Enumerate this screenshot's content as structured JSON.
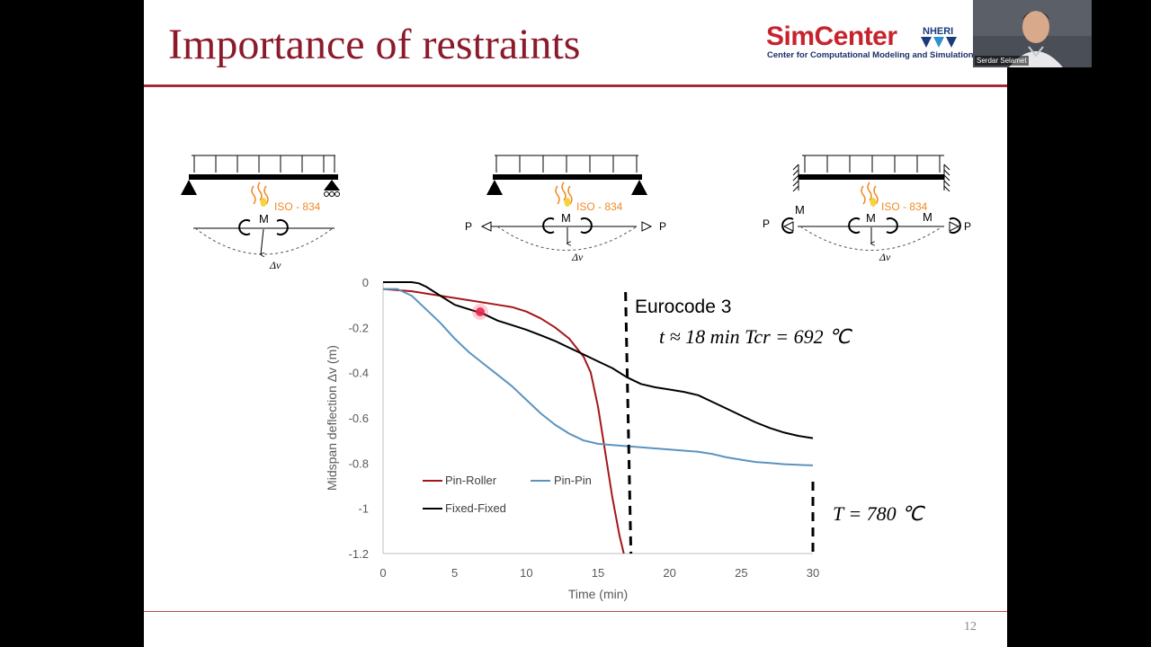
{
  "slide": {
    "title": "Importance of restraints",
    "number": "12",
    "logo": {
      "main": "SimCenter",
      "badge": "NHERI",
      "subtitle": "Center for Computational Modeling and Simulation"
    },
    "webcam": {
      "name": "Serdar Selamet"
    }
  },
  "diagrams": [
    {
      "support": "pin-roller",
      "fire_label": "ISO - 834",
      "moment_label": "M",
      "deflection_label": "Δv"
    },
    {
      "support": "pin-pin",
      "fire_label": "ISO - 834",
      "moment_label": "M",
      "axial_label": "P",
      "deflection_label": "Δv"
    },
    {
      "support": "fixed-fixed",
      "fire_label": "ISO - 834",
      "moment_label": "M",
      "axial_label": "P",
      "deflection_label": "Δv"
    }
  ],
  "annotations": {
    "eurocode": "Eurocode 3",
    "eurocode_eq": "t ≈ 18 min   Tcr = 692 ℃",
    "temp_eq": "T = 780 ℃"
  },
  "colors": {
    "accent": "#8b1a2b",
    "pin_roller": "#a4161a",
    "pin_pin": "#5b93bf",
    "fixed_fixed": "#000000",
    "fire": "#f08a24"
  },
  "chart_data": {
    "type": "line",
    "xlabel": "Time (min)",
    "ylabel": "Midspan deflection   Δv  (m)",
    "xlim": [
      0,
      30
    ],
    "ylim": [
      -1.2,
      0
    ],
    "xticks": [
      "0",
      "5",
      "10",
      "15",
      "20",
      "25",
      "30"
    ],
    "yticks": [
      "0",
      "-0.2",
      "-0.4",
      "-0.6",
      "-0.8",
      "-1",
      "-1.2"
    ],
    "legend": [
      "Pin-Roller",
      "Pin-Pin",
      "Fixed-Fixed"
    ],
    "series": [
      {
        "name": "Pin-Roller",
        "x": [
          0,
          2,
          4,
          6,
          8,
          9,
          10,
          11,
          12,
          13,
          14,
          14.5,
          15,
          15.5,
          16,
          16.5,
          16.8
        ],
        "y": [
          -0.03,
          -0.04,
          -0.06,
          -0.08,
          -0.1,
          -0.11,
          -0.13,
          -0.16,
          -0.2,
          -0.25,
          -0.33,
          -0.4,
          -0.55,
          -0.75,
          -0.95,
          -1.12,
          -1.2
        ]
      },
      {
        "name": "Pin-Pin",
        "x": [
          0,
          1,
          2,
          3,
          4,
          5,
          6,
          7,
          8,
          9,
          10,
          11,
          12,
          13,
          14,
          15,
          16,
          17,
          18,
          19,
          20,
          21,
          22,
          23,
          24,
          25,
          26,
          27,
          28,
          29,
          30
        ],
        "y": [
          -0.03,
          -0.03,
          -0.06,
          -0.12,
          -0.18,
          -0.25,
          -0.31,
          -0.36,
          -0.41,
          -0.46,
          -0.52,
          -0.58,
          -0.63,
          -0.67,
          -0.7,
          -0.715,
          -0.72,
          -0.725,
          -0.73,
          -0.735,
          -0.74,
          -0.745,
          -0.75,
          -0.76,
          -0.775,
          -0.785,
          -0.795,
          -0.8,
          -0.805,
          -0.808,
          -0.81
        ]
      },
      {
        "name": "Fixed-Fixed",
        "x": [
          0,
          1,
          2,
          2.5,
          3,
          4,
          5,
          6,
          7,
          8,
          9,
          10,
          11,
          12,
          13,
          14,
          15,
          16,
          17,
          18,
          19,
          20,
          21,
          22,
          23,
          24,
          25,
          26,
          27,
          28,
          29,
          30
        ],
        "y": [
          0,
          0,
          0,
          -0.005,
          -0.02,
          -0.06,
          -0.1,
          -0.12,
          -0.14,
          -0.17,
          -0.19,
          -0.21,
          -0.235,
          -0.26,
          -0.29,
          -0.32,
          -0.35,
          -0.38,
          -0.42,
          -0.45,
          -0.465,
          -0.475,
          -0.485,
          -0.5,
          -0.53,
          -0.56,
          -0.59,
          -0.62,
          -0.645,
          -0.665,
          -0.68,
          -0.69
        ]
      }
    ],
    "reference_lines": [
      {
        "x": 17.3,
        "style": "dashed",
        "label": "Eurocode 3"
      },
      {
        "x": 30,
        "style": "dashed",
        "label": "T = 780 ℃"
      }
    ]
  }
}
